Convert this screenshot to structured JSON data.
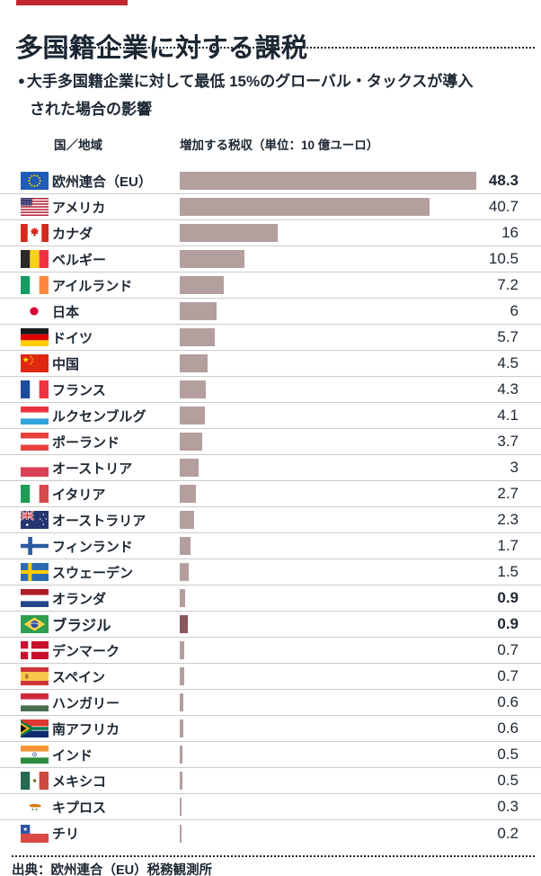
{
  "header": {
    "title": "多国籍企業に対する課税"
  },
  "subtitle": {
    "bullet": "●",
    "line1": "大手多国籍企業に対して最低 15%のグローバル・タックスが導入",
    "line2": "された場合の影響"
  },
  "columns": {
    "country": "国／地域",
    "revenue": "増加する税収（単位：10 億ユーロ）"
  },
  "chart_data": {
    "type": "bar",
    "orientation": "horizontal",
    "title": "多国籍企業に対する課税",
    "unit": "10億ユーロ",
    "value_axis_max": 48.3,
    "legend": "none",
    "rows": [
      {
        "country": "欧州連合（EU）",
        "value": 48.3,
        "display": "48.3",
        "flag": "eu",
        "value_bold": true,
        "label_bold": false,
        "emphasis": false
      },
      {
        "country": "アメリカ",
        "value": 40.7,
        "display": "40.7",
        "flag": "usa",
        "value_bold": false,
        "label_bold": false,
        "emphasis": false
      },
      {
        "country": "カナダ",
        "value": 16,
        "display": "16",
        "flag": "canada",
        "value_bold": false,
        "label_bold": false,
        "emphasis": false
      },
      {
        "country": "ベルギー",
        "value": 10.5,
        "display": "10.5",
        "flag": "belgium",
        "value_bold": false,
        "label_bold": false,
        "emphasis": false
      },
      {
        "country": "アイルランド",
        "value": 7.2,
        "display": "7.2",
        "flag": "ireland",
        "value_bold": false,
        "label_bold": false,
        "emphasis": false
      },
      {
        "country": "日本",
        "value": 6,
        "display": "6",
        "flag": "japan",
        "value_bold": false,
        "label_bold": false,
        "emphasis": false
      },
      {
        "country": "ドイツ",
        "value": 5.7,
        "display": "5.7",
        "flag": "germany",
        "value_bold": false,
        "label_bold": false,
        "emphasis": false
      },
      {
        "country": "中国",
        "value": 4.5,
        "display": "4.5",
        "flag": "china",
        "value_bold": false,
        "label_bold": false,
        "emphasis": false
      },
      {
        "country": "フランス",
        "value": 4.3,
        "display": "4.3",
        "flag": "france",
        "value_bold": false,
        "label_bold": false,
        "emphasis": false
      },
      {
        "country": "ルクセンブルグ",
        "value": 4.1,
        "display": "4.1",
        "flag": "luxembourg",
        "value_bold": false,
        "label_bold": false,
        "emphasis": false
      },
      {
        "country": "ポーランド",
        "value": 3.7,
        "display": "3.7",
        "flag": "poland",
        "value_bold": false,
        "label_bold": false,
        "emphasis": false
      },
      {
        "country": "オーストリア",
        "value": 3,
        "display": "3",
        "flag": "austria",
        "value_bold": false,
        "label_bold": false,
        "emphasis": false
      },
      {
        "country": "イタリア",
        "value": 2.7,
        "display": "2.7",
        "flag": "italy",
        "value_bold": false,
        "label_bold": false,
        "emphasis": false
      },
      {
        "country": "オーストラリア",
        "value": 2.3,
        "display": "2.3",
        "flag": "australia",
        "value_bold": false,
        "label_bold": false,
        "emphasis": false
      },
      {
        "country": "フィンランド",
        "value": 1.7,
        "display": "1.7",
        "flag": "finland",
        "value_bold": false,
        "label_bold": false,
        "emphasis": false
      },
      {
        "country": "スウェーデン",
        "value": 1.5,
        "display": "1.5",
        "flag": "sweden",
        "value_bold": false,
        "label_bold": false,
        "emphasis": false
      },
      {
        "country": "オランダ",
        "value": 0.9,
        "display": "0.9",
        "flag": "netherlands",
        "value_bold": true,
        "label_bold": false,
        "emphasis": false
      },
      {
        "country": "ブラジル",
        "value": 0.9,
        "display": "0.9",
        "flag": "brazil",
        "value_bold": true,
        "label_bold": true,
        "emphasis": true
      },
      {
        "country": "デンマーク",
        "value": 0.7,
        "display": "0.7",
        "flag": "denmark",
        "value_bold": false,
        "label_bold": false,
        "emphasis": false
      },
      {
        "country": "スペイン",
        "value": 0.7,
        "display": "0.7",
        "flag": "spain",
        "value_bold": false,
        "label_bold": false,
        "emphasis": false
      },
      {
        "country": "ハンガリー",
        "value": 0.6,
        "display": "0.6",
        "flag": "hungary",
        "value_bold": false,
        "label_bold": false,
        "emphasis": false
      },
      {
        "country": "南アフリカ",
        "value": 0.6,
        "display": "0.6",
        "flag": "south-africa",
        "value_bold": false,
        "label_bold": false,
        "emphasis": false
      },
      {
        "country": "インド",
        "value": 0.5,
        "display": "0.5",
        "flag": "india",
        "value_bold": false,
        "label_bold": false,
        "emphasis": false
      },
      {
        "country": "メキシコ",
        "value": 0.5,
        "display": "0.5",
        "flag": "mexico",
        "value_bold": false,
        "label_bold": false,
        "emphasis": false
      },
      {
        "country": "キプロス",
        "value": 0.3,
        "display": "0.3",
        "flag": "cyprus",
        "value_bold": false,
        "label_bold": false,
        "emphasis": false
      },
      {
        "country": "チリ",
        "value": 0.2,
        "display": "0.2",
        "flag": "chile",
        "value_bold": false,
        "label_bold": false,
        "emphasis": false
      }
    ]
  },
  "footer": {
    "source": "出典：欧州連合（EU）税務観測所"
  },
  "colors": {
    "accent_red": "#c1272d",
    "bar": "#b59e9e",
    "bar_emphasis": "#8a575c",
    "text_navy": "#1c2733",
    "separator": "#cccccc"
  }
}
